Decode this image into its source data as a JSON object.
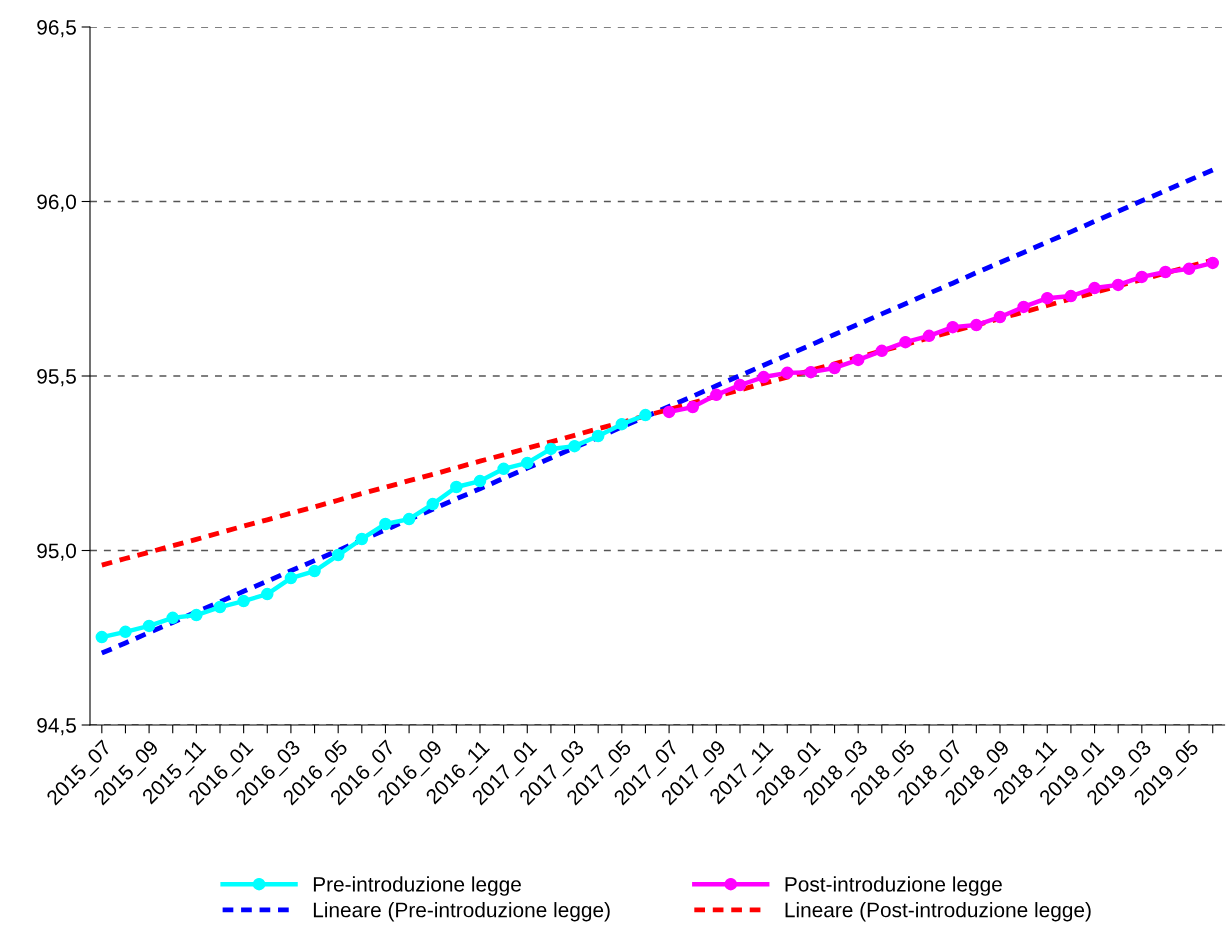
{
  "chart_data": {
    "type": "line",
    "categories": [
      "2015_07",
      null,
      "2015_09",
      null,
      "2015_11",
      null,
      "2016_01",
      null,
      "2016_03",
      null,
      "2016_05",
      null,
      "2016_07",
      null,
      "2016_09",
      null,
      "2016_11",
      null,
      "2017_01",
      null,
      "2017_03",
      null,
      "2017_05",
      null,
      "2017_07",
      null,
      "2017_09",
      null,
      "2017_11",
      null,
      "2018_01",
      null,
      "2018_03",
      null,
      "2018_05",
      null,
      "2018_07",
      null,
      "2018_09",
      null,
      "2018_11",
      null,
      "2019_01",
      null,
      "2019_03",
      null,
      "2019_05",
      null
    ],
    "series": [
      {
        "name": "Pre-introduzione legge",
        "color": "#00ffff",
        "marker": "circle",
        "line_style": "solid",
        "values": [
          94.752,
          94.767,
          94.784,
          94.807,
          94.815,
          94.838,
          94.855,
          94.875,
          94.921,
          94.941,
          94.987,
          95.033,
          95.076,
          95.09,
          95.133,
          95.182,
          95.199,
          95.234,
          95.251,
          95.291,
          95.299,
          95.328,
          95.362,
          95.388,
          null,
          null,
          null,
          null,
          null,
          null,
          null,
          null,
          null,
          null,
          null,
          null,
          null,
          null,
          null,
          null,
          null,
          null,
          null,
          null,
          null,
          null,
          null,
          null
        ]
      },
      {
        "name": "Post-introduzione legge",
        "color": "#ff00ff",
        "marker": "circle",
        "line_style": "solid",
        "values": [
          null,
          null,
          null,
          null,
          null,
          null,
          null,
          null,
          null,
          null,
          null,
          null,
          null,
          null,
          null,
          null,
          null,
          null,
          null,
          null,
          null,
          null,
          null,
          null,
          95.397,
          95.411,
          95.446,
          95.474,
          95.497,
          95.509,
          95.511,
          95.523,
          95.546,
          95.572,
          95.597,
          95.615,
          95.64,
          95.646,
          95.669,
          95.698,
          95.723,
          95.729,
          95.752,
          95.761,
          95.784,
          95.798,
          95.807,
          95.824
        ]
      },
      {
        "name": "Lineare (Pre-introduzione legge)",
        "color": "#0000ff",
        "marker": "none",
        "line_style": "dashed",
        "values": [
          94.706,
          94.735,
          94.765,
          94.794,
          94.824,
          94.853,
          94.883,
          94.912,
          94.942,
          94.971,
          95.0,
          95.03,
          95.059,
          95.089,
          95.118,
          95.148,
          95.177,
          95.207,
          95.236,
          95.265,
          95.295,
          95.324,
          95.354,
          95.383,
          95.413,
          95.442,
          95.472,
          95.501,
          95.531,
          95.56,
          95.589,
          95.619,
          95.648,
          95.678,
          95.707,
          95.737,
          95.766,
          95.796,
          95.825,
          95.854,
          95.884,
          95.913,
          95.943,
          95.972,
          96.002,
          96.031,
          96.061,
          96.09
        ]
      },
      {
        "name": "Lineare (Post-introduzione legge)",
        "color": "#ff0000",
        "marker": "none",
        "line_style": "dashed",
        "values": [
          94.958,
          94.977,
          94.995,
          95.014,
          95.032,
          95.051,
          95.07,
          95.088,
          95.107,
          95.125,
          95.144,
          95.163,
          95.181,
          95.2,
          95.218,
          95.237,
          95.256,
          95.274,
          95.293,
          95.311,
          95.33,
          95.349,
          95.367,
          95.386,
          95.404,
          95.423,
          95.442,
          95.46,
          95.479,
          95.497,
          95.516,
          95.535,
          95.553,
          95.572,
          95.59,
          95.609,
          95.628,
          95.646,
          95.665,
          95.683,
          95.702,
          95.721,
          95.739,
          95.758,
          95.776,
          95.795,
          95.814,
          95.832
        ]
      }
    ],
    "ylim": [
      94.5,
      96.5
    ],
    "yticks": [
      {
        "value": 94.5,
        "label": "94,5"
      },
      {
        "value": 95.0,
        "label": "95,0"
      },
      {
        "value": 95.5,
        "label": "95,5"
      },
      {
        "value": 96.0,
        "label": "96,0"
      },
      {
        "value": 96.5,
        "label": "96,5"
      }
    ],
    "grid": "y",
    "legend": "bottom"
  }
}
